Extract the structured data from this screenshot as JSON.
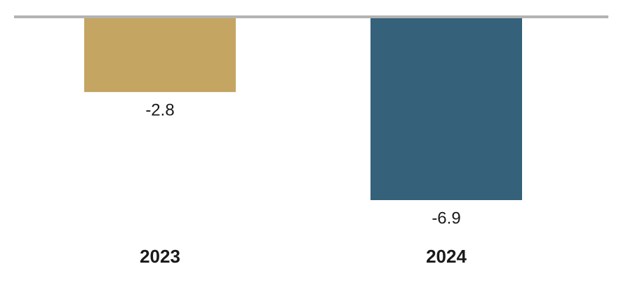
{
  "chart_data": {
    "type": "bar",
    "categories": [
      "2023",
      "2024"
    ],
    "values": [
      -2.8,
      -6.9
    ],
    "colors": [
      "#c4a562",
      "#35617a"
    ]
  }
}
